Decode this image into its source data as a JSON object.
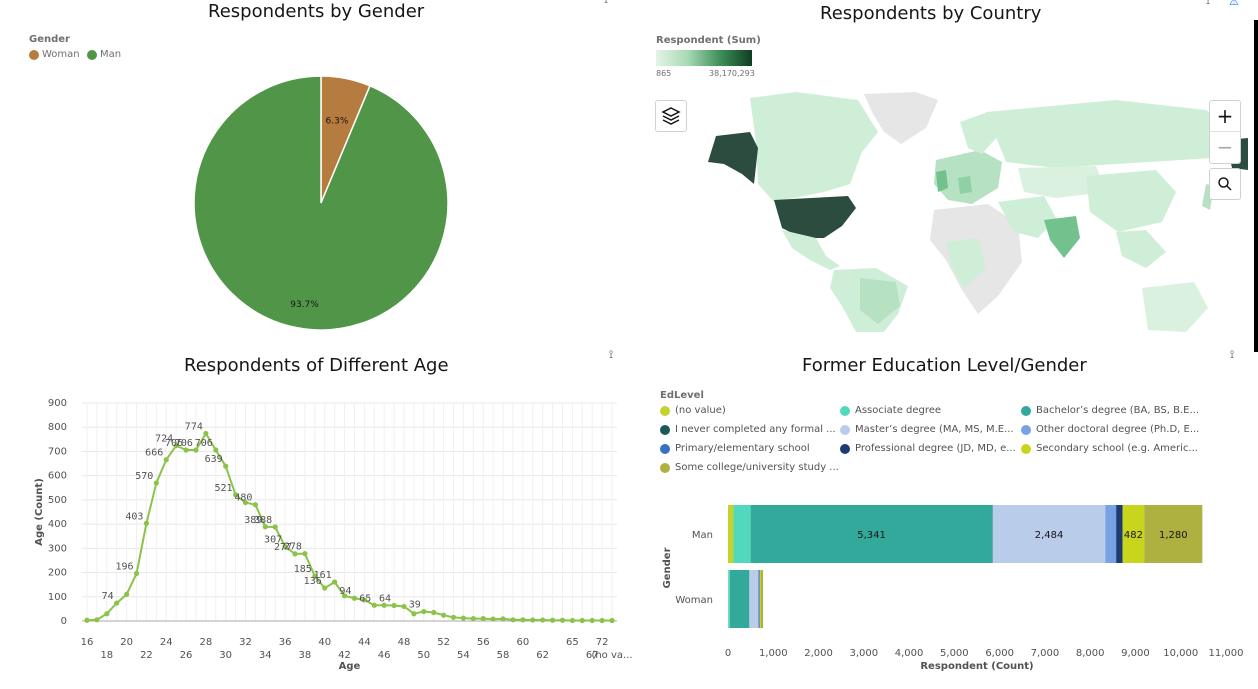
{
  "gender_panel": {
    "title": "Respondents by Gender",
    "legend_title": "Gender",
    "legend": [
      {
        "label": "Woman",
        "color": "#b67b3e"
      },
      {
        "label": "Man",
        "color": "#519648"
      }
    ],
    "pin_icon": "pin-icon"
  },
  "country_panel": {
    "title": "Respondents by Country",
    "legend_title": "Respondent (Sum)",
    "scale_min": "865",
    "scale_max": "38,170,293",
    "colors": {
      "low": "#e4f4e8",
      "mid": "#a6d9b4",
      "high": "#2b4c3f"
    },
    "controls": {
      "layers_icon": "layers-icon",
      "zoom_in": "+",
      "zoom_out": "−",
      "search_icon": "search-icon"
    }
  },
  "age_panel": {
    "title": "Respondents of Different Age",
    "pin_icon": "pin-icon"
  },
  "edu_panel": {
    "title": "Former Education Level/Gender",
    "legend_title": "EdLevel",
    "legend": [
      {
        "label": "(no value)",
        "color": "#c4d32b"
      },
      {
        "label": "Associate degree",
        "color": "#52d9bd"
      },
      {
        "label": "Bachelor’s degree (BA, BS, B.E...",
        "color": "#33a99b"
      },
      {
        "label": "I never completed any formal ...",
        "color": "#1a5c55"
      },
      {
        "label": "Master’s degree (MA, MS, M.E...",
        "color": "#b9cce9"
      },
      {
        "label": "Other doctoral degree (Ph.D, E...",
        "color": "#78a2e3"
      },
      {
        "label": "Primary/elementary school",
        "color": "#3a70c4"
      },
      {
        "label": "Professional degree (JD, MD, e...",
        "color": "#1d3a73"
      },
      {
        "label": "Secondary school (e.g. Americ...",
        "color": "#c9d41c"
      },
      {
        "label": "Some college/university study ...",
        "color": "#aeb03f"
      }
    ],
    "pin_icon": "pin-icon"
  },
  "chart_data": [
    {
      "type": "pie",
      "title": "Respondents by Gender",
      "categories": [
        "Woman",
        "Man"
      ],
      "values": [
        6.3,
        93.7
      ],
      "labels": [
        "6.3%",
        "93.7%"
      ],
      "colors": [
        "#b67b3e",
        "#519648"
      ],
      "legend": "top-left"
    },
    {
      "type": "line",
      "title": "Respondents of Different Age",
      "xlabel": "Age",
      "ylabel": "Age (Count)",
      "ylim": [
        0,
        900
      ],
      "yticks": [
        0,
        100,
        200,
        300,
        400,
        500,
        600,
        700,
        800,
        900
      ],
      "x": [
        "16",
        "17",
        "18",
        "19",
        "20",
        "21",
        "22",
        "23",
        "24",
        "25",
        "26",
        "27",
        "28",
        "29",
        "30",
        "31",
        "32",
        "33",
        "34",
        "35",
        "36",
        "37",
        "38",
        "39",
        "40",
        "41",
        "42",
        "43",
        "44",
        "45",
        "46",
        "47",
        "48",
        "49",
        "50",
        "51",
        "52",
        "53",
        "54",
        "55",
        "56",
        "57",
        "58",
        "59",
        "60",
        "61",
        "62",
        "63",
        "64",
        "65",
        "66",
        "67",
        "72",
        "(no va..."
      ],
      "x_tick_labels_top": [
        "16",
        "20",
        "24",
        "28",
        "32",
        "36",
        "40",
        "44",
        "48",
        "52",
        "56",
        "60",
        "65",
        "72"
      ],
      "x_tick_labels_bottom": [
        "18",
        "22",
        "26",
        "30",
        "34",
        "38",
        "42",
        "46",
        "50",
        "54",
        "58",
        "62",
        "67",
        "(no va..."
      ],
      "values": [
        3,
        5,
        30,
        74,
        110,
        196,
        403,
        570,
        666,
        724,
        706,
        706,
        774,
        706,
        639,
        521,
        489,
        480,
        389,
        388,
        307,
        277,
        278,
        185,
        136,
        161,
        104,
        94,
        87,
        65,
        65,
        64,
        60,
        30,
        39,
        35,
        24,
        15,
        12,
        10,
        10,
        8,
        9,
        5,
        5,
        4,
        4,
        3,
        3,
        2,
        2,
        2,
        2,
        2
      ],
      "data_labels": {
        "19": "74",
        "21": "196",
        "22": "403",
        "23": "570",
        "24": "666",
        "25": "724",
        "26": "706",
        "27": "706",
        "28": "774",
        "29": "706",
        "30": "639",
        "31": "521",
        "33": "480",
        "34": "389",
        "35": "388",
        "36": "307",
        "37": "277",
        "38": "278",
        "39": "185",
        "40": "136",
        "41": "161",
        "43": "94",
        "45": "65",
        "47": "64",
        "50": "39"
      },
      "color": "#8bc34a",
      "grid": true
    },
    {
      "type": "bar",
      "orientation": "horizontal",
      "stacked": true,
      "title": "Former Education Level/Gender",
      "xlabel": "Respondent (Count)",
      "ylabel": "Gender",
      "categories": [
        "Man",
        "Woman"
      ],
      "xlim": [
        0,
        11000
      ],
      "xticks": [
        0,
        1000,
        2000,
        3000,
        4000,
        5000,
        6000,
        7000,
        8000,
        9000,
        10000,
        11000
      ],
      "xtick_labels": [
        "0",
        "1,000",
        "2,000",
        "3,000",
        "4,000",
        "5,000",
        "6,000",
        "7,000",
        "8,000",
        "9,000",
        "10,000",
        "11,000"
      ],
      "series": [
        {
          "name": "(no value)",
          "values": [
            120,
            5
          ]
        },
        {
          "name": "Associate degree",
          "values": [
            380,
            35
          ]
        },
        {
          "name": "Bachelor’s degree (BA, BS, B.E...",
          "values": [
            5341,
            430
          ]
        },
        {
          "name": "I never completed any formal ...",
          "values": [
            8,
            2
          ]
        },
        {
          "name": "Master’s degree (MA, MS, M.E...",
          "values": [
            2484,
            190
          ]
        },
        {
          "name": "Other doctoral degree (Ph.D, E...",
          "values": [
            230,
            30
          ]
        },
        {
          "name": "Primary/elementary school",
          "values": [
            12,
            2
          ]
        },
        {
          "name": "Professional degree (JD, MD, e...",
          "values": [
            140,
            10
          ]
        },
        {
          "name": "Secondary school (e.g. Americ...",
          "values": [
            482,
            25
          ]
        },
        {
          "name": "Some college/university study ...",
          "values": [
            1280,
            45
          ]
        }
      ],
      "data_labels": {
        "Man": [
          "",
          "",
          "5,341",
          "",
          "2,484",
          "",
          "",
          "",
          "482",
          "1,280"
        ]
      }
    }
  ]
}
